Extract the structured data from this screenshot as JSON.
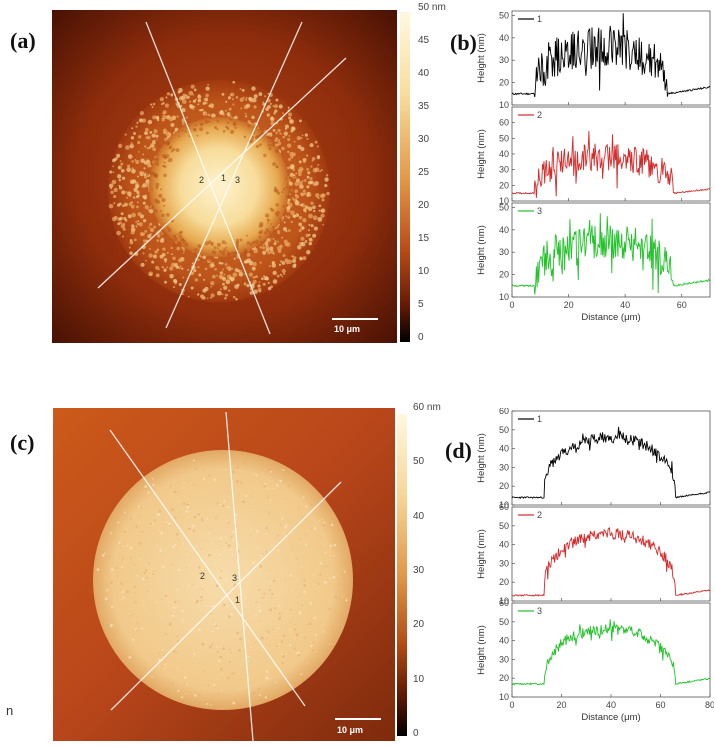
{
  "panels": {
    "a": {
      "label": "(a)"
    },
    "b": {
      "label": "(b)"
    },
    "c": {
      "label": "(c)"
    },
    "d": {
      "label": "(d)"
    }
  },
  "afm_a": {
    "scale_bar": "10 μm",
    "line_labels": [
      "2",
      "1",
      "3"
    ],
    "colorbar_ticks": [
      "50 nm",
      "45",
      "40",
      "35",
      "30",
      "25",
      "20",
      "15",
      "10",
      "5",
      "0"
    ]
  },
  "afm_c": {
    "scale_bar": "10 μm",
    "line_labels": [
      "2",
      "3",
      "1"
    ],
    "colorbar_ticks": [
      "60 nm",
      "50",
      "40",
      "30",
      "20",
      "10",
      "0"
    ]
  },
  "stray_text": "n",
  "chart_data": [
    {
      "id": "b",
      "type": "line",
      "xlabel": "Distance (μm)",
      "ylabel": "Height (nm)",
      "xlim": [
        0,
        70
      ],
      "xticks": [
        "0",
        "20",
        "40",
        "60"
      ],
      "colors": [
        "#000000",
        "#d42a2a",
        "#22c22a"
      ],
      "series": [
        {
          "name": "1",
          "ylim": [
            10,
            52
          ],
          "yticks": [
            "10",
            "20",
            "30",
            "40",
            "50"
          ],
          "baseline": 15,
          "plateau": 36,
          "start": 8,
          "end": 55,
          "noise": 9,
          "x": [
            0,
            5,
            8,
            10,
            15,
            20,
            25,
            30,
            35,
            40,
            45,
            50,
            55,
            60,
            70
          ],
          "y": [
            15,
            15,
            18,
            22,
            30,
            36,
            38,
            40,
            42,
            40,
            38,
            32,
            16,
            14,
            17
          ]
        },
        {
          "name": "2",
          "ylim": [
            10,
            70
          ],
          "yticks": [
            "10",
            "20",
            "30",
            "40",
            "50",
            "60"
          ],
          "baseline": 15,
          "plateau": 38,
          "start": 8,
          "end": 57,
          "noise": 9,
          "x": [
            0,
            5,
            10,
            15,
            20,
            25,
            30,
            35,
            40,
            45,
            50,
            55,
            60,
            70
          ],
          "y": [
            14,
            14,
            16,
            20,
            26,
            32,
            38,
            44,
            40,
            38,
            32,
            22,
            17,
            17
          ]
        },
        {
          "name": "3",
          "ylim": [
            10,
            52
          ],
          "yticks": [
            "10",
            "20",
            "30",
            "40",
            "50"
          ],
          "baseline": 15,
          "plateau": 35,
          "start": 8,
          "end": 57,
          "noise": 8,
          "x": [
            0,
            5,
            10,
            15,
            20,
            25,
            30,
            35,
            40,
            45,
            50,
            55,
            60,
            70
          ],
          "y": [
            15,
            15,
            20,
            26,
            32,
            36,
            40,
            42,
            40,
            36,
            30,
            20,
            16,
            20
          ]
        }
      ]
    },
    {
      "id": "d",
      "type": "line",
      "xlabel": "Distance (μm)",
      "ylabel": "Height (nm)",
      "xlim": [
        0,
        80
      ],
      "xticks": [
        "0",
        "20",
        "40",
        "60",
        "80"
      ],
      "colors": [
        "#000000",
        "#d42a2a",
        "#22c22a"
      ],
      "series": [
        {
          "name": "1",
          "ylim": [
            10,
            60
          ],
          "yticks": [
            "10",
            "20",
            "30",
            "40",
            "50",
            "60"
          ],
          "baseline": 14,
          "plateau": 46,
          "start": 13,
          "end": 66,
          "noise": 3,
          "x": [
            0,
            12,
            13,
            15,
            20,
            30,
            40,
            50,
            60,
            65,
            66,
            67,
            80
          ],
          "y": [
            14,
            15,
            40,
            43,
            46,
            48,
            50,
            48,
            45,
            40,
            38,
            16,
            15
          ]
        },
        {
          "name": "2",
          "ylim": [
            10,
            60
          ],
          "yticks": [
            "10",
            "20",
            "30",
            "40",
            "50",
            "60"
          ],
          "baseline": 13,
          "plateau": 46,
          "start": 13,
          "end": 66,
          "noise": 3,
          "x": [
            0,
            12,
            13,
            15,
            20,
            30,
            40,
            50,
            60,
            65,
            66,
            67,
            80
          ],
          "y": [
            13,
            14,
            38,
            42,
            45,
            48,
            50,
            48,
            45,
            40,
            38,
            17,
            16
          ]
        },
        {
          "name": "3",
          "ylim": [
            10,
            60
          ],
          "yticks": [
            "10",
            "20",
            "30",
            "40",
            "50",
            "60"
          ],
          "baseline": 17,
          "plateau": 46,
          "start": 13,
          "end": 66,
          "noise": 3,
          "x": [
            0,
            12,
            13,
            15,
            20,
            30,
            40,
            50,
            60,
            65,
            66,
            67,
            80
          ],
          "y": [
            17,
            17,
            44,
            45,
            46,
            48,
            49,
            47,
            45,
            44,
            44,
            18,
            18
          ]
        }
      ]
    }
  ]
}
